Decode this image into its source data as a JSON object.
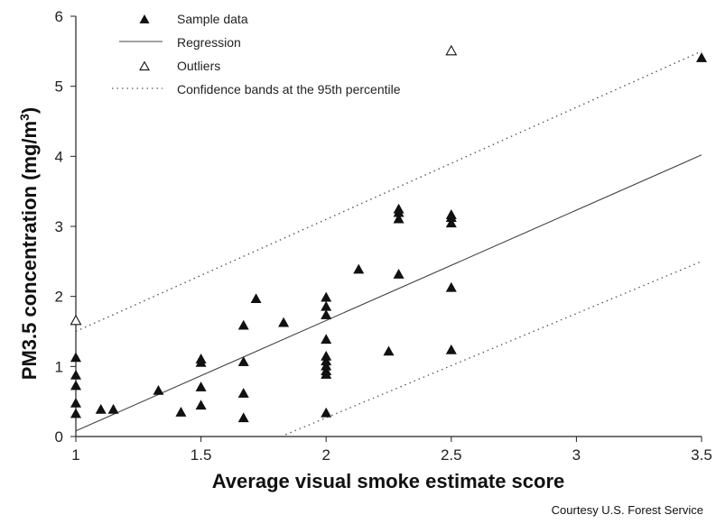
{
  "chart_data": {
    "type": "scatter",
    "xlabel": "Average visual smoke estimate score",
    "ylabel": "PM3.5 concentration (mg/m3)",
    "ylabel_main": "PM3.5 concentration (mg/m",
    "ylabel_sup": "3",
    "ylabel_end": ")",
    "xlim": [
      1,
      3.5
    ],
    "ylim": [
      0,
      6
    ],
    "xticks": [
      "1",
      "1.5",
      "2",
      "2.5",
      "3",
      "3.5"
    ],
    "yticks": [
      "0",
      "1",
      "2",
      "3",
      "4",
      "5",
      "6"
    ],
    "grid": false,
    "legend_position": "top-left",
    "legend": {
      "sample": "Sample data",
      "regression": "Regression",
      "outliers": "Outliers",
      "confidence": "Confidence bands at the 95th percentile"
    },
    "series": [
      {
        "name": "Sample data",
        "marker": "filled-triangle",
        "points": [
          [
            1.0,
            0.32
          ],
          [
            1.0,
            0.47
          ],
          [
            1.0,
            0.72
          ],
          [
            1.0,
            0.87
          ],
          [
            1.0,
            1.12
          ],
          [
            1.1,
            0.38
          ],
          [
            1.15,
            0.38
          ],
          [
            1.33,
            0.65
          ],
          [
            1.42,
            0.34
          ],
          [
            1.5,
            0.44
          ],
          [
            1.5,
            0.7
          ],
          [
            1.5,
            1.05
          ],
          [
            1.5,
            1.1
          ],
          [
            1.67,
            0.26
          ],
          [
            1.67,
            0.61
          ],
          [
            1.67,
            1.06
          ],
          [
            1.67,
            1.58
          ],
          [
            1.72,
            1.96
          ],
          [
            1.83,
            1.62
          ],
          [
            2.0,
            0.33
          ],
          [
            2.0,
            0.88
          ],
          [
            2.0,
            0.93
          ],
          [
            2.0,
            1.0
          ],
          [
            2.0,
            1.07
          ],
          [
            2.0,
            1.14
          ],
          [
            2.0,
            1.38
          ],
          [
            2.0,
            1.73
          ],
          [
            2.0,
            1.85
          ],
          [
            2.0,
            1.98
          ],
          [
            2.13,
            2.38
          ],
          [
            2.25,
            1.21
          ],
          [
            2.29,
            2.31
          ],
          [
            2.29,
            3.1
          ],
          [
            2.29,
            3.19
          ],
          [
            2.29,
            3.24
          ],
          [
            2.5,
            1.23
          ],
          [
            2.5,
            2.12
          ],
          [
            2.5,
            3.04
          ],
          [
            2.5,
            3.12
          ],
          [
            2.5,
            3.16
          ],
          [
            3.5,
            5.4
          ]
        ]
      },
      {
        "name": "Outliers",
        "marker": "open-triangle",
        "points": [
          [
            1.0,
            1.65
          ],
          [
            2.5,
            5.5
          ]
        ]
      },
      {
        "name": "Regression",
        "style": "solid",
        "line": [
          [
            1.0,
            0.08
          ],
          [
            3.5,
            4.02
          ]
        ]
      },
      {
        "name": "Confidence bands at the 95th percentile",
        "style": "dotted",
        "upper": [
          [
            1.0,
            1.5
          ],
          [
            3.5,
            5.5
          ]
        ],
        "lower": [
          [
            1.82,
            0.0
          ],
          [
            3.5,
            2.5
          ]
        ]
      }
    ]
  },
  "credit": "Courtesy  U.S. Forest Service"
}
